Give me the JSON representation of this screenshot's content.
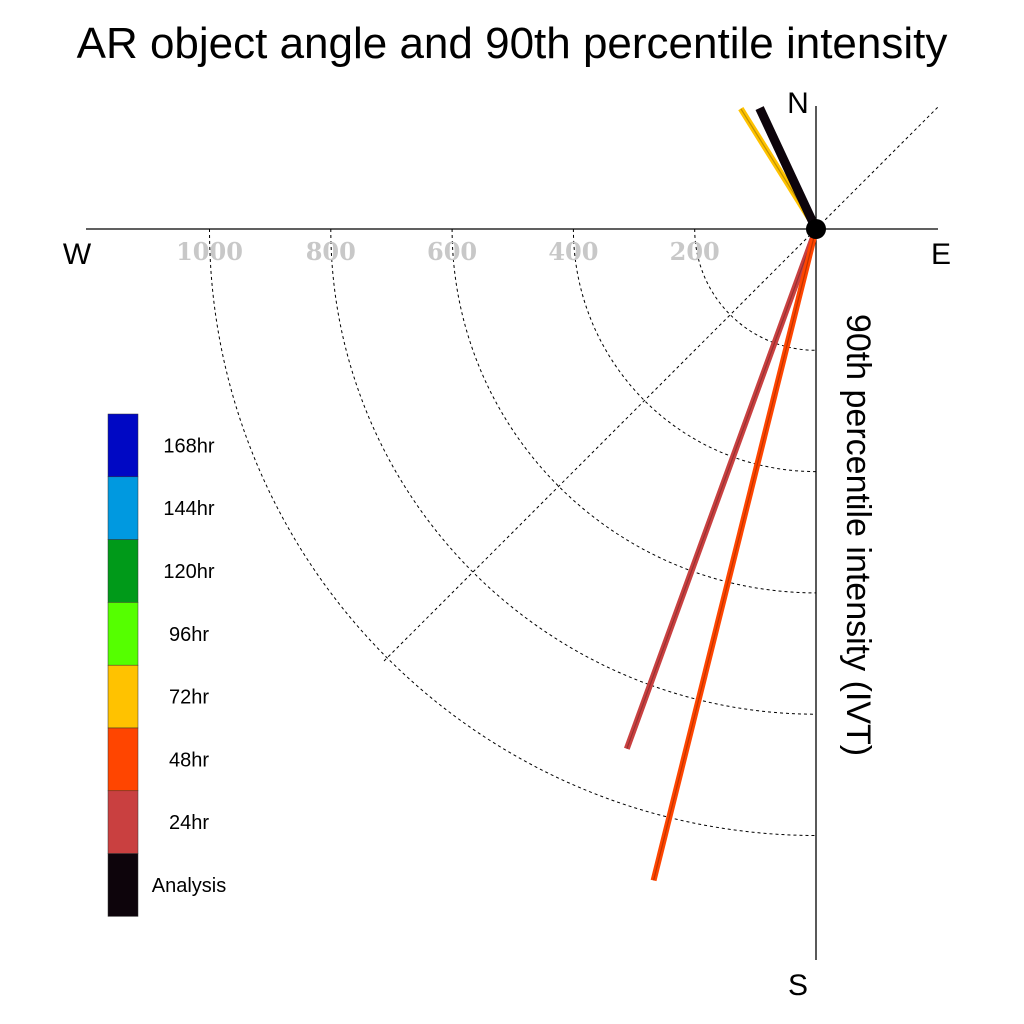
{
  "chart_data": {
    "type": "polar-quadrant-vectors",
    "title": "AR object angle and 90th percentile intensity",
    "ylabel": "90th percentile intensity (IVT)",
    "directions": {
      "north": "N",
      "south": "S",
      "west": "W",
      "east": "E"
    },
    "radial_ticks": [
      200,
      400,
      600,
      800,
      1000
    ],
    "radial_max": 1200,
    "grid": "dashed",
    "legend": {
      "placement": "left",
      "entries": [
        {
          "label": "168hr",
          "color": "#0008c4"
        },
        {
          "label": "144hr",
          "color": "#0099e0"
        },
        {
          "label": "120hr",
          "color": "#009a19"
        },
        {
          "label": "96hr",
          "color": "#55ff00"
        },
        {
          "label": "72hr",
          "color": "#ffc200"
        },
        {
          "label": "48hr",
          "color": "#ff4500"
        },
        {
          "label": "24hr",
          "color": "#c94040"
        },
        {
          "label": "Analysis",
          "color": "#0d040b"
        }
      ]
    },
    "vectors": [
      {
        "series": "72hr",
        "color": "#ffc200",
        "direction": "NNW",
        "bearing_deg": 328,
        "intensity": 234
      },
      {
        "series": "Analysis",
        "color": "#0d040b",
        "direction": "NNW",
        "bearing_deg": 335,
        "intensity": 220
      },
      {
        "series": "24hr",
        "color": "#c94040",
        "direction": "SSW",
        "bearing_deg": 200,
        "intensity": 912
      },
      {
        "series": "48hr",
        "color": "#ff4500",
        "direction": "SSW",
        "bearing_deg": 194,
        "intensity": 1107
      }
    ]
  }
}
